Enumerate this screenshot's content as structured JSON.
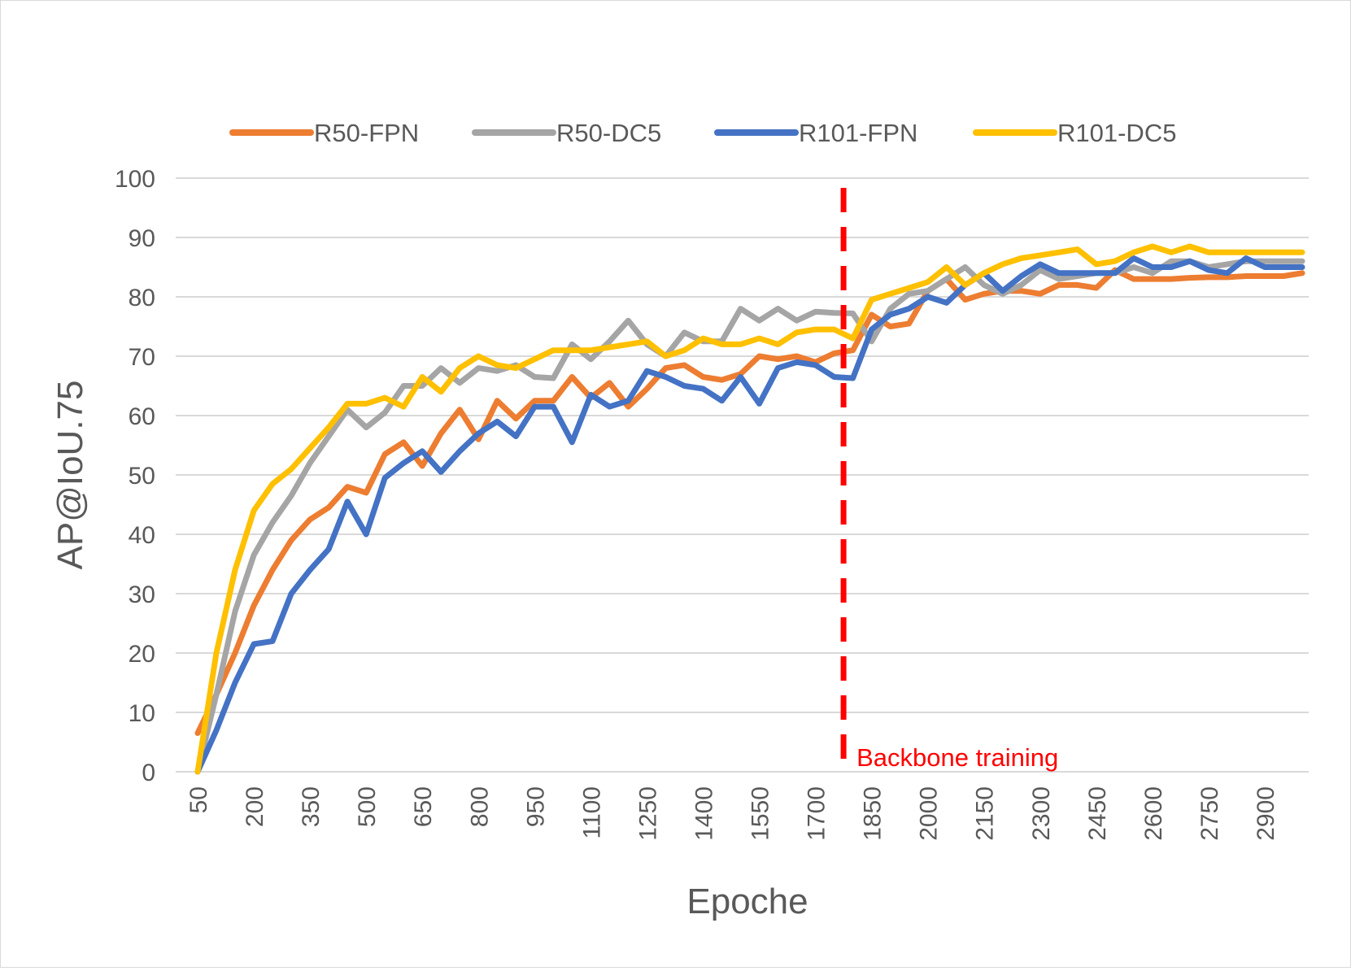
{
  "chart_data": {
    "type": "line",
    "xlabel": "Epoche",
    "ylabel": "AP@IoU.75",
    "ylim": [
      0,
      100
    ],
    "yticks": [
      0,
      10,
      20,
      30,
      40,
      50,
      60,
      70,
      80,
      90,
      100
    ],
    "x": [
      50,
      100,
      150,
      200,
      250,
      300,
      350,
      400,
      450,
      500,
      550,
      600,
      650,
      700,
      750,
      800,
      850,
      900,
      950,
      1000,
      1050,
      1100,
      1150,
      1200,
      1250,
      1300,
      1350,
      1400,
      1450,
      1500,
      1550,
      1600,
      1650,
      1700,
      1750,
      1800,
      1850,
      1900,
      1950,
      2000,
      2050,
      2100,
      2150,
      2200,
      2250,
      2300,
      2350,
      2400,
      2450,
      2500,
      2550,
      2600,
      2650,
      2700,
      2750,
      2800,
      2850,
      2900,
      2950,
      3000
    ],
    "xticks": [
      50,
      200,
      350,
      500,
      650,
      800,
      950,
      1100,
      1250,
      1400,
      1550,
      1700,
      1850,
      2000,
      2150,
      2300,
      2450,
      2600,
      2750,
      2900
    ],
    "grid": true,
    "legend_position": "top",
    "series": [
      {
        "name": "R50-FPN",
        "color": "#ED7D31",
        "values": [
          6.5,
          13,
          20,
          28,
          34,
          39,
          42.5,
          44.5,
          48,
          47,
          53.5,
          55.5,
          51.5,
          57,
          61,
          56,
          62.5,
          59.5,
          62.5,
          62.5,
          66.5,
          63,
          65.5,
          61.5,
          64.5,
          68,
          68.5,
          66.5,
          66,
          67,
          70,
          69.5,
          70,
          69,
          70.5,
          71,
          77,
          75,
          75.5,
          81,
          83,
          79.5,
          80.5,
          81,
          81,
          80.5,
          82,
          82,
          81.5,
          84.5,
          83,
          83,
          83,
          83.2,
          83.3,
          83.3,
          83.5,
          83.5,
          83.5,
          84
        ]
      },
      {
        "name": "R50-DC5",
        "color": "#A5A5A5",
        "values": [
          0,
          13,
          27,
          36.5,
          42,
          46.5,
          52,
          56.5,
          61,
          58,
          60.5,
          65,
          65,
          68,
          65.5,
          68,
          67.5,
          68.5,
          66.5,
          66.3,
          72,
          69.5,
          72.5,
          76,
          72,
          70,
          74,
          72.5,
          72.5,
          78,
          76,
          78,
          76,
          77.5,
          77.3,
          77.2,
          72.5,
          78,
          80.5,
          81,
          83,
          85,
          82,
          80.5,
          82,
          84.5,
          83,
          83.5,
          84,
          84,
          85,
          84,
          86,
          86,
          85,
          85.5,
          86,
          86,
          86,
          86
        ]
      },
      {
        "name": "R101-FPN",
        "color": "#4472C4",
        "values": [
          0,
          7,
          15,
          21.5,
          22,
          30,
          34,
          37.5,
          45.5,
          40,
          49.5,
          52,
          54,
          50.5,
          54,
          57,
          59,
          56.5,
          61.5,
          61.5,
          55.5,
          63.5,
          61.5,
          62.5,
          67.5,
          66.5,
          65,
          64.5,
          62.5,
          66.5,
          62,
          68,
          69,
          68.5,
          66.5,
          66.3,
          74.5,
          77,
          78,
          80,
          79,
          82,
          84,
          81,
          83.5,
          85.5,
          84,
          84,
          84,
          84,
          86.5,
          85,
          85,
          86,
          84.5,
          84,
          86.5,
          85,
          85,
          85
        ]
      },
      {
        "name": "R101-DC5",
        "color": "#FFC000",
        "values": [
          0,
          20,
          34,
          44,
          48.5,
          51,
          54.5,
          58,
          62,
          62,
          63,
          61.5,
          66.5,
          64,
          68,
          70,
          68.5,
          68,
          69.5,
          71,
          71,
          71,
          71.5,
          72,
          72.5,
          70,
          71,
          73,
          72,
          72,
          73,
          72,
          74,
          74.5,
          74.5,
          73,
          79.5,
          80.5,
          81.5,
          82.5,
          85,
          82,
          84,
          85.5,
          86.5,
          87,
          87.5,
          88,
          85.5,
          86,
          87.5,
          88.5,
          87.5,
          88.5,
          87.5,
          87.5,
          87.5,
          87.5,
          87.5,
          87.5
        ]
      }
    ],
    "marker_line": {
      "x": 1775,
      "label": "Backbone training",
      "color": "#FF0000"
    }
  }
}
